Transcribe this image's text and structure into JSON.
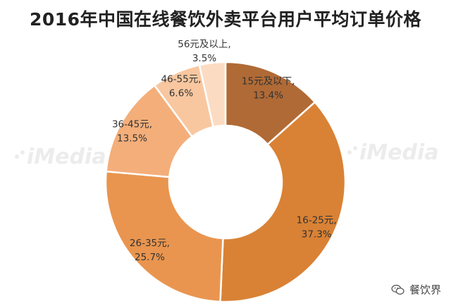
{
  "chart_data": {
    "type": "pie",
    "title": "2016年中国在线餐饮外卖平台用户平均订单价格",
    "variant": "donut",
    "slices": [
      {
        "category": "15元及以下",
        "value": 13.4,
        "label_pct": "13.4%",
        "color": "#b06a35"
      },
      {
        "category": "16-25元",
        "value": 37.3,
        "label_pct": "37.3%",
        "color": "#d98235"
      },
      {
        "category": "26-35元",
        "value": 25.7,
        "label_pct": "25.7%",
        "color": "#e9954f"
      },
      {
        "category": "36-45元",
        "value": 13.5,
        "label_pct": "13.5%",
        "color": "#f4ae7a"
      },
      {
        "category": "46-55元",
        "value": 6.6,
        "label_pct": "6.6%",
        "color": "#f8c7a0"
      },
      {
        "category": "56元及以上",
        "value": 3.5,
        "label_pct": "3.5%",
        "color": "#fbdcc3"
      }
    ]
  },
  "watermark": "iMedia",
  "credit": {
    "text": "餐饮界",
    "icon": "wechat-icon"
  }
}
